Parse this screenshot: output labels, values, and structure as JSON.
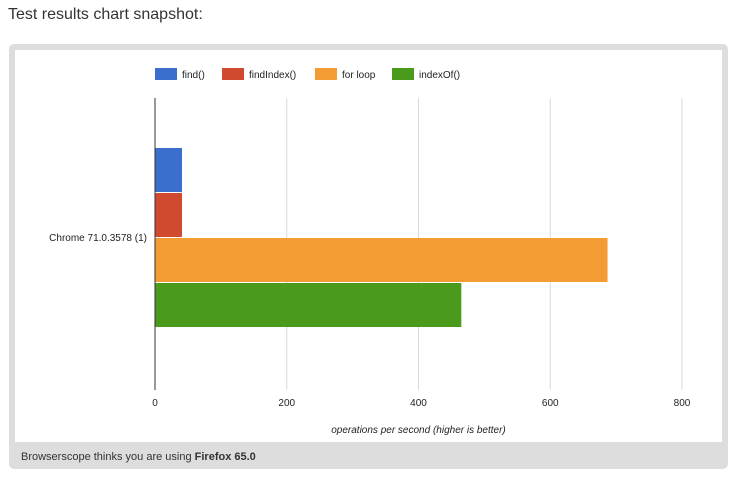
{
  "heading": "Test results chart snapshot:",
  "footer": {
    "prefix": "Browserscope thinks you are using ",
    "browser": "Firefox 65.0"
  },
  "chart_data": {
    "type": "bar",
    "orientation": "horizontal",
    "categories": [
      "Chrome 71.0.3578 (1)"
    ],
    "series": [
      {
        "name": "find()",
        "values": [
          41
        ],
        "color": "#3a6fcd"
      },
      {
        "name": "findIndex()",
        "values": [
          41
        ],
        "color": "#d04a2f"
      },
      {
        "name": "for loop",
        "values": [
          687
        ],
        "color": "#f39c34"
      },
      {
        "name": "indexOf()",
        "values": [
          465
        ],
        "color": "#4a9a1c"
      }
    ],
    "xlabel": "operations per second (higher is better)",
    "xlim": [
      0,
      800
    ],
    "xticks": [
      "0",
      "200",
      "400",
      "600",
      "800"
    ],
    "grid": true,
    "legend_position": "top"
  }
}
